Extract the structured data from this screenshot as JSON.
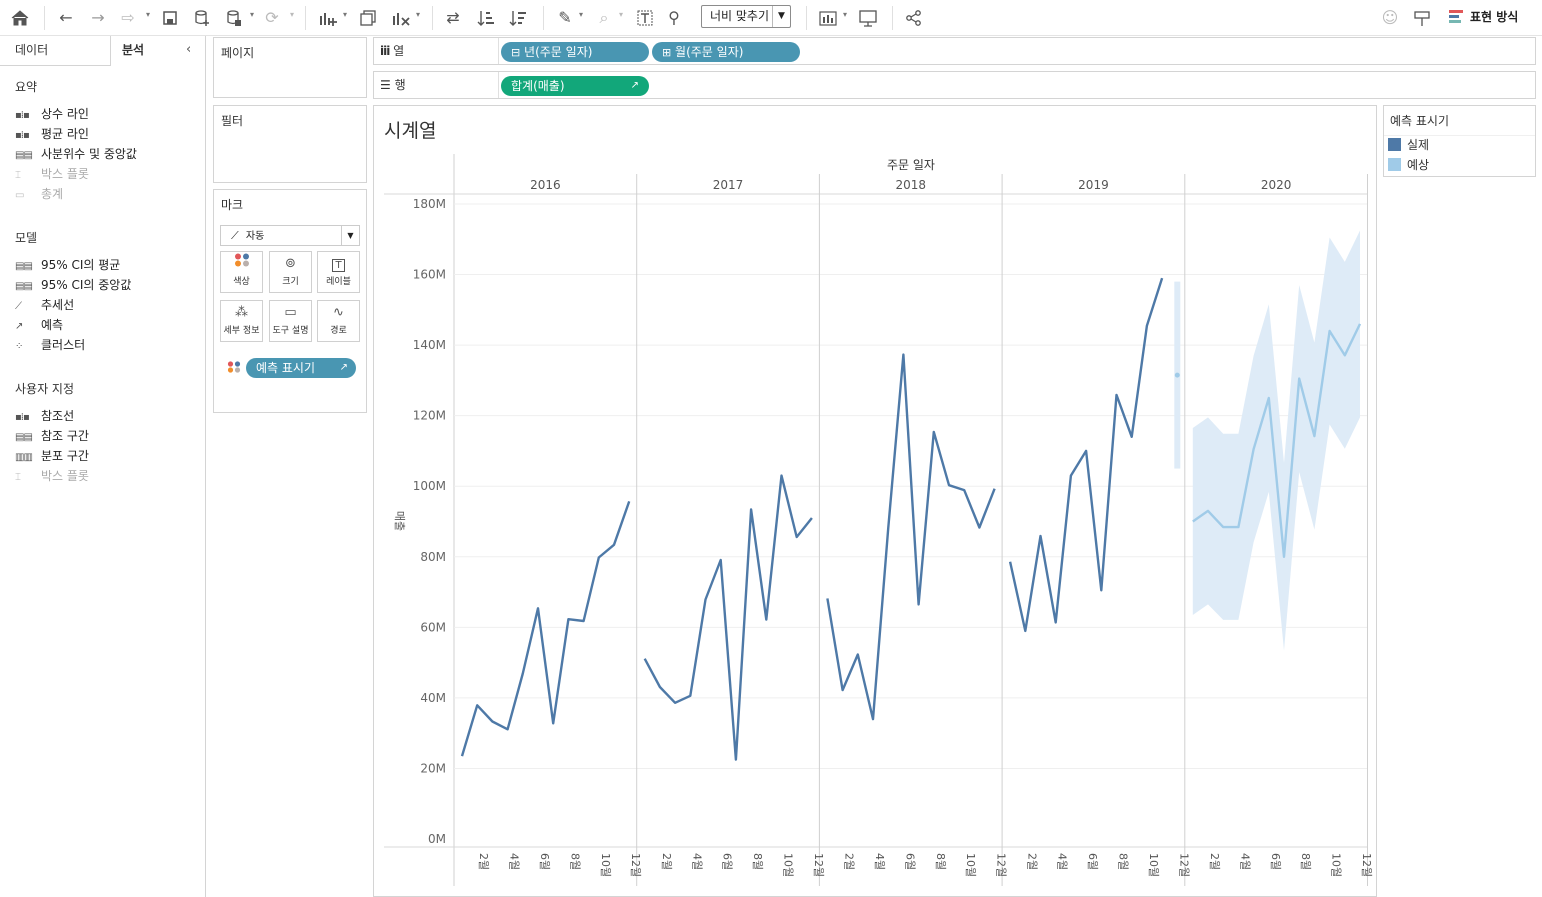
{
  "toolbar": {
    "fit_label": "너비 맞추기",
    "show_me_label": "표현 방식",
    "icons": [
      "home-icon",
      "undo-icon",
      "redo-icon",
      "replay-icon",
      "save-icon",
      "new-datasource-icon",
      "pause-updates-icon",
      "refresh-icon",
      "new-worksheet-icon",
      "duplicate-sheet-icon",
      "clear-sheet-icon",
      "swap-icon",
      "sort-ascending-icon",
      "sort-descending-icon",
      "highlight-icon",
      "group-icon",
      "label-icon",
      "pin-icon",
      "view-cards-icon",
      "presentation-icon",
      "share-icon",
      "ai-assistant-icon",
      "pin-axis-icon",
      "show-me-icon"
    ]
  },
  "left_pane": {
    "tabs": [
      "데이터",
      "분석"
    ],
    "active_tab": "분석",
    "sections": [
      {
        "title": "요약",
        "items": [
          {
            "label": "상수 라인",
            "enabled": true
          },
          {
            "label": "평균 라인",
            "enabled": true
          },
          {
            "label": "사분위수 및 중앙값",
            "enabled": true
          },
          {
            "label": "박스 플롯",
            "enabled": false
          },
          {
            "label": "총계",
            "enabled": false
          }
        ]
      },
      {
        "title": "모델",
        "items": [
          {
            "label": "95% CI의 평균",
            "enabled": true
          },
          {
            "label": "95% CI의 중앙값",
            "enabled": true
          },
          {
            "label": "추세선",
            "enabled": true
          },
          {
            "label": "예측",
            "enabled": true
          },
          {
            "label": "클러스터",
            "enabled": true
          }
        ]
      },
      {
        "title": "사용자 지정",
        "items": [
          {
            "label": "참조선",
            "enabled": true
          },
          {
            "label": "참조 구간",
            "enabled": true
          },
          {
            "label": "분포 구간",
            "enabled": true
          },
          {
            "label": "박스 플롯",
            "enabled": false
          }
        ]
      }
    ]
  },
  "cards": {
    "pages_title": "페이지",
    "filters_title": "필터",
    "marks_title": "마크",
    "mark_type": "자동",
    "mark_buttons": [
      "색상",
      "크기",
      "레이블",
      "세부 정보",
      "도구 설명",
      "경로"
    ],
    "color_pill": "예측 표시기"
  },
  "shelves": {
    "columns_label": "열",
    "rows_label": "행",
    "column_pills": [
      "년(주문 일자)",
      "월(주문 일자)"
    ],
    "row_pills": [
      "합계(매출)"
    ]
  },
  "legend": {
    "title": "예측 표시기",
    "items": [
      {
        "label": "실제",
        "color": "#4e79a7"
      },
      {
        "label": "예상",
        "color": "#a0cbe8"
      }
    ]
  },
  "chart_data": {
    "type": "line",
    "title": "시계열",
    "column_header": "주문 일자",
    "ylabel": "매출",
    "ylim": [
      0,
      180000000
    ],
    "yticks": [
      "0M",
      "20M",
      "40M",
      "60M",
      "80M",
      "100M",
      "120M",
      "140M",
      "160M",
      "180M"
    ],
    "years": [
      "2016",
      "2017",
      "2018",
      "2019",
      "2020"
    ],
    "month_labels": [
      "2월",
      "4월",
      "6월",
      "8월",
      "10월",
      "12월"
    ],
    "colors": {
      "actual": "#4e79a7",
      "forecast": "#a0cbe8",
      "band": "#deebf7"
    },
    "series": [
      {
        "name": "실제",
        "year": "2016",
        "months": [
          1,
          2,
          3,
          4,
          5,
          6,
          7,
          8,
          9,
          10,
          11,
          12
        ],
        "values": [
          23.5,
          37.9,
          33.3,
          31.1,
          46.9,
          65.4,
          32.8,
          62.3,
          61.8,
          79.8,
          83.4,
          95.7
        ]
      },
      {
        "name": "실제",
        "year": "2017",
        "months": [
          1,
          2,
          3,
          4,
          5,
          6,
          7,
          8,
          9,
          10,
          11,
          12
        ],
        "values": [
          51.1,
          43.1,
          38.6,
          40.6,
          67.9,
          79.1,
          22.5,
          93.4,
          62.2,
          103.0,
          85.6,
          91.0
        ]
      },
      {
        "name": "실제",
        "year": "2018",
        "months": [
          1,
          2,
          3,
          4,
          5,
          6,
          7,
          8,
          9,
          10,
          11,
          12
        ],
        "values": [
          68.2,
          42.2,
          52.3,
          34.0,
          88.0,
          137.3,
          66.5,
          115.4,
          100.3,
          98.9,
          88.3,
          99.3
        ]
      },
      {
        "name": "실제",
        "year": "2019",
        "months": [
          1,
          2,
          3,
          4,
          5,
          6,
          7,
          8,
          9,
          10,
          11
        ],
        "values": [
          78.6,
          59.0,
          85.9,
          61.4,
          103.0,
          110.0,
          70.5,
          125.9,
          114.0,
          145.5,
          159.0
        ]
      },
      {
        "name": "예상",
        "year": "2019",
        "months": [
          12
        ],
        "values": [
          131.5
        ],
        "lower": [
          105.0
        ],
        "upper": [
          158.0
        ]
      },
      {
        "name": "예상",
        "year": "2020",
        "months": [
          1,
          2,
          3,
          4,
          5,
          6,
          7,
          8,
          9,
          10,
          11,
          12
        ],
        "values": [
          90.0,
          93.0,
          88.4,
          88.4,
          110.5,
          125.0,
          80.0,
          130.5,
          114.2,
          144.0,
          137.1,
          146.0
        ],
        "lower": [
          63.5,
          66.5,
          62.1,
          62.1,
          84.1,
          98.4,
          53.4,
          104.0,
          87.7,
          117.5,
          110.6,
          119.5
        ],
        "upper": [
          116.5,
          119.5,
          114.9,
          114.9,
          137.0,
          151.6,
          106.6,
          157.0,
          140.7,
          170.5,
          163.6,
          172.5
        ]
      }
    ],
    "value_unit": "M"
  }
}
